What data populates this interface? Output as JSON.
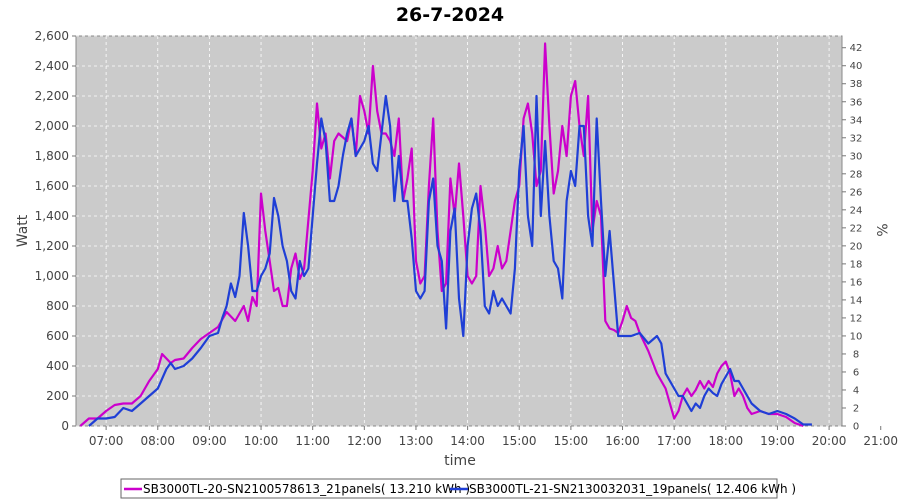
{
  "chart_data": {
    "type": "line",
    "title": "26-7-2024",
    "xlabel": "time",
    "ylabel": "Watt",
    "ylabel_right": "%",
    "x_ticks": [
      "07:00",
      "08:00",
      "09:00",
      "10:00",
      "11:00",
      "12:00",
      "13:00",
      "14:00",
      "15:00",
      "15:00",
      "16:00",
      "17:00",
      "18:00",
      "19:00",
      "20:00",
      "21:00"
    ],
    "x_range": [
      "06:25",
      "21:15"
    ],
    "ylim": [
      0,
      2600
    ],
    "y_ticks": [
      "0",
      "200",
      "400",
      "600",
      "800",
      "1,000",
      "1,200",
      "1,400",
      "1,600",
      "1,800",
      "2,000",
      "2,200",
      "2,400",
      "2,600"
    ],
    "y2lim": [
      0,
      43.3
    ],
    "y2_ticks": [
      "0",
      "2",
      "4",
      "6",
      "8",
      "10",
      "12",
      "14",
      "16",
      "18",
      "20",
      "22",
      "24",
      "26",
      "28",
      "30",
      "32",
      "34",
      "36",
      "38",
      "40",
      "42"
    ],
    "grid": true,
    "legend_position": "bottom",
    "series": [
      {
        "name": "SB3000TL-20-SN2100578613_21panels( 13.210 kWh )",
        "color": "#cc00cc",
        "points": [
          [
            "06:30",
            0
          ],
          [
            "06:40",
            50
          ],
          [
            "06:50",
            50
          ],
          [
            "07:00",
            100
          ],
          [
            "07:10",
            140
          ],
          [
            "07:20",
            150
          ],
          [
            "07:30",
            150
          ],
          [
            "07:40",
            200
          ],
          [
            "07:50",
            300
          ],
          [
            "08:00",
            380
          ],
          [
            "08:05",
            480
          ],
          [
            "08:10",
            450
          ],
          [
            "08:15",
            420
          ],
          [
            "08:20",
            440
          ],
          [
            "08:30",
            450
          ],
          [
            "08:40",
            520
          ],
          [
            "08:50",
            580
          ],
          [
            "09:00",
            620
          ],
          [
            "09:10",
            660
          ],
          [
            "09:20",
            760
          ],
          [
            "09:30",
            700
          ],
          [
            "09:40",
            800
          ],
          [
            "09:45",
            700
          ],
          [
            "09:50",
            860
          ],
          [
            "09:55",
            800
          ],
          [
            "10:00",
            1550
          ],
          [
            "10:05",
            1300
          ],
          [
            "10:10",
            1100
          ],
          [
            "10:15",
            900
          ],
          [
            "10:20",
            920
          ],
          [
            "10:25",
            800
          ],
          [
            "10:30",
            800
          ],
          [
            "10:35",
            1050
          ],
          [
            "10:40",
            1150
          ],
          [
            "10:45",
            980
          ],
          [
            "10:50",
            1050
          ],
          [
            "11:00",
            1700
          ],
          [
            "11:05",
            2150
          ],
          [
            "11:10",
            1850
          ],
          [
            "11:15",
            1950
          ],
          [
            "11:20",
            1650
          ],
          [
            "11:25",
            1900
          ],
          [
            "11:30",
            1950
          ],
          [
            "11:40",
            1900
          ],
          [
            "11:45",
            2050
          ],
          [
            "11:50",
            1800
          ],
          [
            "11:55",
            2200
          ],
          [
            "12:00",
            2100
          ],
          [
            "12:05",
            1950
          ],
          [
            "12:10",
            2400
          ],
          [
            "12:15",
            2100
          ],
          [
            "12:20",
            1950
          ],
          [
            "12:25",
            1950
          ],
          [
            "12:30",
            1900
          ],
          [
            "12:35",
            1800
          ],
          [
            "12:40",
            2050
          ],
          [
            "12:45",
            1500
          ],
          [
            "12:50",
            1650
          ],
          [
            "12:55",
            1850
          ],
          [
            "13:00",
            1100
          ],
          [
            "13:05",
            950
          ],
          [
            "13:10",
            1000
          ],
          [
            "13:15",
            1600
          ],
          [
            "13:20",
            2050
          ],
          [
            "13:25",
            1300
          ],
          [
            "13:30",
            900
          ],
          [
            "13:35",
            950
          ],
          [
            "13:40",
            1650
          ],
          [
            "13:45",
            1400
          ],
          [
            "13:50",
            1750
          ],
          [
            "13:55",
            1400
          ],
          [
            "14:00",
            1000
          ],
          [
            "14:05",
            950
          ],
          [
            "14:10",
            1000
          ],
          [
            "14:15",
            1600
          ],
          [
            "14:20",
            1350
          ],
          [
            "14:25",
            1000
          ],
          [
            "14:30",
            1050
          ],
          [
            "14:35",
            1200
          ],
          [
            "14:40",
            1050
          ],
          [
            "14:45",
            1100
          ],
          [
            "14:50",
            1300
          ],
          [
            "14:55",
            1500
          ],
          [
            "15:00",
            1600
          ],
          [
            "15:05",
            2050
          ],
          [
            "15:10",
            2150
          ],
          [
            "15:15",
            1950
          ],
          [
            "15:20",
            1600
          ],
          [
            "15:25",
            1700
          ],
          [
            "15:30",
            2550
          ],
          [
            "15:35",
            2000
          ],
          [
            "15:40",
            1550
          ],
          [
            "15:45",
            1700
          ],
          [
            "15:50",
            2000
          ],
          [
            "15:55",
            1800
          ],
          [
            "16:00",
            2200
          ],
          [
            "16:05",
            2300
          ],
          [
            "16:10",
            2000
          ],
          [
            "16:15",
            1800
          ],
          [
            "16:20",
            2200
          ],
          [
            "16:25",
            1300
          ],
          [
            "16:30",
            1500
          ],
          [
            "16:35",
            1400
          ],
          [
            "16:40",
            700
          ],
          [
            "16:45",
            650
          ],
          [
            "16:50",
            640
          ],
          [
            "16:55",
            620
          ],
          [
            "17:00",
            700
          ],
          [
            "17:05",
            800
          ],
          [
            "17:10",
            720
          ],
          [
            "17:15",
            700
          ],
          [
            "17:20",
            620
          ],
          [
            "17:30",
            500
          ],
          [
            "17:40",
            350
          ],
          [
            "17:50",
            250
          ],
          [
            "17:55",
            150
          ],
          [
            "18:00",
            50
          ],
          [
            "18:05",
            100
          ],
          [
            "18:10",
            200
          ],
          [
            "18:15",
            250
          ],
          [
            "18:20",
            200
          ],
          [
            "18:25",
            240
          ],
          [
            "18:30",
            300
          ],
          [
            "18:35",
            250
          ],
          [
            "18:40",
            300
          ],
          [
            "18:45",
            260
          ],
          [
            "18:50",
            350
          ],
          [
            "18:55",
            400
          ],
          [
            "19:00",
            430
          ],
          [
            "19:05",
            350
          ],
          [
            "19:10",
            200
          ],
          [
            "19:15",
            250
          ],
          [
            "19:20",
            200
          ],
          [
            "19:25",
            120
          ],
          [
            "19:30",
            80
          ],
          [
            "19:40",
            100
          ],
          [
            "19:50",
            80
          ],
          [
            "20:00",
            80
          ],
          [
            "20:10",
            60
          ],
          [
            "20:20",
            20
          ],
          [
            "20:30",
            0
          ]
        ]
      },
      {
        "name": "SB3000TL-21-SN2130032031_19panels( 12.406 kWh )",
        "color": "#1f3fd6",
        "points": [
          [
            "06:40",
            0
          ],
          [
            "06:50",
            50
          ],
          [
            "07:00",
            50
          ],
          [
            "07:10",
            60
          ],
          [
            "07:20",
            120
          ],
          [
            "07:30",
            100
          ],
          [
            "07:40",
            150
          ],
          [
            "07:50",
            200
          ],
          [
            "08:00",
            250
          ],
          [
            "08:10",
            380
          ],
          [
            "08:15",
            420
          ],
          [
            "08:20",
            380
          ],
          [
            "08:30",
            400
          ],
          [
            "08:40",
            450
          ],
          [
            "08:50",
            520
          ],
          [
            "09:00",
            600
          ],
          [
            "09:10",
            620
          ],
          [
            "09:15",
            720
          ],
          [
            "09:20",
            800
          ],
          [
            "09:25",
            950
          ],
          [
            "09:30",
            860
          ],
          [
            "09:35",
            1000
          ],
          [
            "09:40",
            1420
          ],
          [
            "09:45",
            1200
          ],
          [
            "09:50",
            900
          ],
          [
            "09:55",
            900
          ],
          [
            "10:00",
            1000
          ],
          [
            "10:05",
            1050
          ],
          [
            "10:10",
            1150
          ],
          [
            "10:15",
            1520
          ],
          [
            "10:20",
            1400
          ],
          [
            "10:25",
            1200
          ],
          [
            "10:30",
            1100
          ],
          [
            "10:35",
            900
          ],
          [
            "10:40",
            850
          ],
          [
            "10:45",
            1100
          ],
          [
            "10:50",
            1000
          ],
          [
            "10:55",
            1050
          ],
          [
            "11:00",
            1400
          ],
          [
            "11:05",
            1750
          ],
          [
            "11:10",
            2050
          ],
          [
            "11:15",
            1900
          ],
          [
            "11:20",
            1500
          ],
          [
            "11:25",
            1500
          ],
          [
            "11:30",
            1600
          ],
          [
            "11:35",
            1800
          ],
          [
            "11:40",
            1950
          ],
          [
            "11:45",
            2050
          ],
          [
            "11:50",
            1800
          ],
          [
            "11:55",
            1850
          ],
          [
            "12:00",
            1900
          ],
          [
            "12:05",
            2000
          ],
          [
            "12:10",
            1750
          ],
          [
            "12:15",
            1700
          ],
          [
            "12:20",
            1950
          ],
          [
            "12:25",
            2200
          ],
          [
            "12:30",
            2000
          ],
          [
            "12:35",
            1500
          ],
          [
            "12:40",
            1800
          ],
          [
            "12:45",
            1500
          ],
          [
            "12:50",
            1500
          ],
          [
            "12:55",
            1250
          ],
          [
            "13:00",
            900
          ],
          [
            "13:05",
            850
          ],
          [
            "13:10",
            900
          ],
          [
            "13:15",
            1500
          ],
          [
            "13:20",
            1650
          ],
          [
            "13:25",
            1200
          ],
          [
            "13:30",
            1100
          ],
          [
            "13:35",
            650
          ],
          [
            "13:40",
            1300
          ],
          [
            "13:45",
            1450
          ],
          [
            "13:50",
            850
          ],
          [
            "13:55",
            600
          ],
          [
            "14:00",
            1200
          ],
          [
            "14:05",
            1450
          ],
          [
            "14:10",
            1550
          ],
          [
            "14:15",
            1300
          ],
          [
            "14:20",
            800
          ],
          [
            "14:25",
            750
          ],
          [
            "14:30",
            900
          ],
          [
            "14:35",
            800
          ],
          [
            "14:40",
            850
          ],
          [
            "14:45",
            800
          ],
          [
            "14:50",
            750
          ],
          [
            "14:55",
            1050
          ],
          [
            "15:00",
            1700
          ],
          [
            "15:05",
            2000
          ],
          [
            "15:10",
            1400
          ],
          [
            "15:15",
            1200
          ],
          [
            "15:20",
            2200
          ],
          [
            "15:25",
            1400
          ],
          [
            "15:30",
            1900
          ],
          [
            "15:35",
            1400
          ],
          [
            "15:40",
            1100
          ],
          [
            "15:45",
            1050
          ],
          [
            "15:50",
            850
          ],
          [
            "15:55",
            1500
          ],
          [
            "16:00",
            1700
          ],
          [
            "16:05",
            1600
          ],
          [
            "16:10",
            2000
          ],
          [
            "16:15",
            2000
          ],
          [
            "16:20",
            1400
          ],
          [
            "16:25",
            1200
          ],
          [
            "16:30",
            2050
          ],
          [
            "16:35",
            1500
          ],
          [
            "16:40",
            1000
          ],
          [
            "16:45",
            1300
          ],
          [
            "16:50",
            950
          ],
          [
            "16:55",
            600
          ],
          [
            "17:00",
            600
          ],
          [
            "17:10",
            600
          ],
          [
            "17:20",
            620
          ],
          [
            "17:30",
            550
          ],
          [
            "17:40",
            600
          ],
          [
            "17:45",
            550
          ],
          [
            "17:50",
            350
          ],
          [
            "17:55",
            300
          ],
          [
            "18:00",
            250
          ],
          [
            "18:05",
            200
          ],
          [
            "18:10",
            200
          ],
          [
            "18:15",
            150
          ],
          [
            "18:20",
            100
          ],
          [
            "18:25",
            150
          ],
          [
            "18:30",
            120
          ],
          [
            "18:35",
            200
          ],
          [
            "18:40",
            250
          ],
          [
            "18:45",
            220
          ],
          [
            "18:50",
            200
          ],
          [
            "18:55",
            280
          ],
          [
            "19:00",
            330
          ],
          [
            "19:05",
            380
          ],
          [
            "19:10",
            300
          ],
          [
            "19:15",
            300
          ],
          [
            "19:20",
            250
          ],
          [
            "19:25",
            200
          ],
          [
            "19:30",
            150
          ],
          [
            "19:40",
            100
          ],
          [
            "19:50",
            80
          ],
          [
            "20:00",
            100
          ],
          [
            "20:10",
            80
          ],
          [
            "20:20",
            50
          ],
          [
            "20:30",
            10
          ],
          [
            "20:40",
            10
          ]
        ]
      }
    ]
  }
}
